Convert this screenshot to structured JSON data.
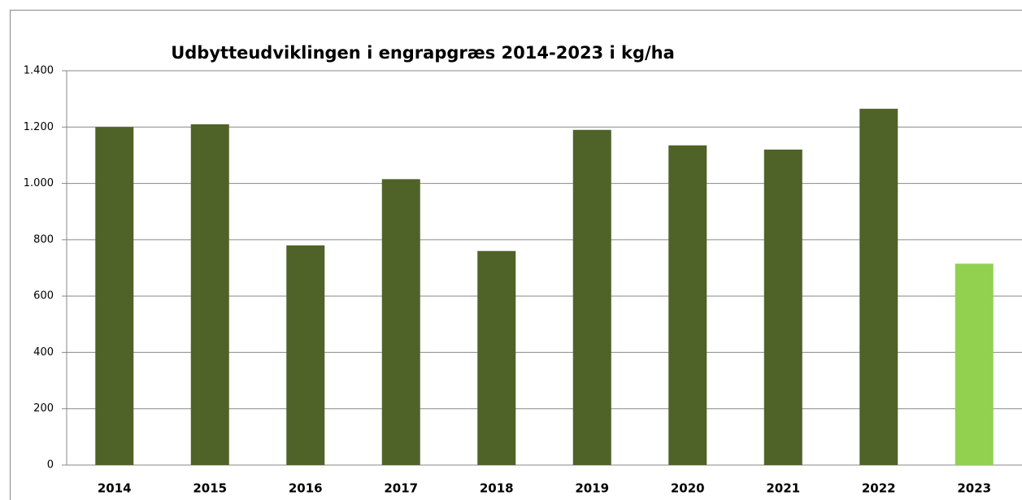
{
  "chart_data": {
    "type": "bar",
    "title": "Udbytteudviklingen i engrapgræs 2014-2023 i kg/ha",
    "categories": [
      "2014",
      "2015",
      "2016",
      "2017",
      "2018",
      "2019",
      "2020",
      "2021",
      "2022",
      "2023"
    ],
    "values": [
      1200,
      1210,
      780,
      1015,
      760,
      1190,
      1135,
      1120,
      1265,
      715
    ],
    "colors": [
      "#4f6228",
      "#4f6228",
      "#4f6228",
      "#4f6228",
      "#4f6228",
      "#4f6228",
      "#4f6228",
      "#4f6228",
      "#4f6228",
      "#92d050"
    ],
    "ylim": [
      0,
      1400
    ],
    "yticks": [
      0,
      200,
      400,
      600,
      800,
      {
        "value": 1000,
        "label": "1.000"
      },
      {
        "value": 1200,
        "label": "1.200"
      },
      {
        "value": 1400,
        "label": "1.400"
      }
    ],
    "grid": true
  }
}
